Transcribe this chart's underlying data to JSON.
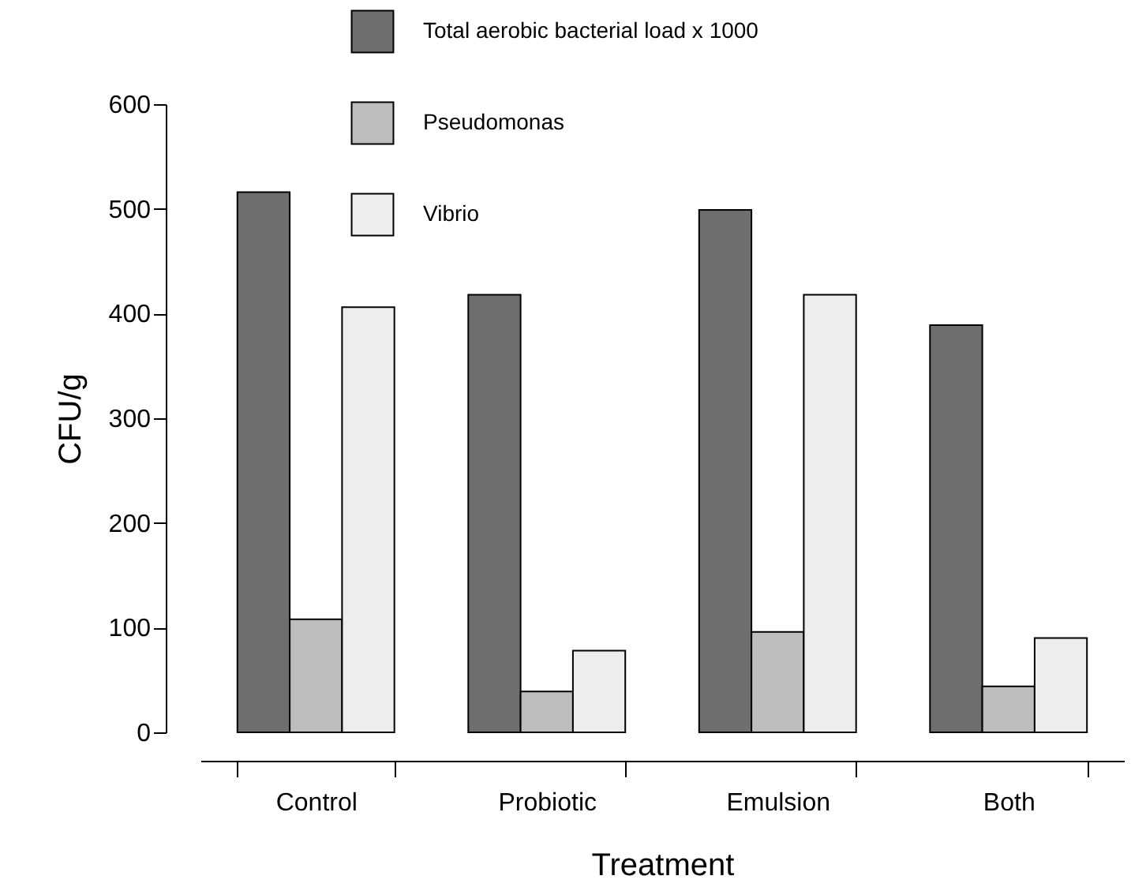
{
  "chart_data": {
    "type": "bar",
    "xlabel": "Treatment",
    "ylabel": "CFU/g",
    "categories": [
      "Control",
      "Probiotic",
      "Emulsion",
      "Both"
    ],
    "series": [
      {
        "name": "Total aerobic bacterial load x 1000",
        "color": "#6e6e6e",
        "values": [
          516,
          418,
          499,
          389
        ]
      },
      {
        "name": "Pseudomonas",
        "color": "#bdbdbd",
        "values": [
          108,
          39,
          96,
          44
        ]
      },
      {
        "name": "Vibrio",
        "color": "#ededed",
        "values": [
          406,
          78,
          418,
          90
        ]
      }
    ],
    "ylim": [
      0,
      600
    ],
    "yticks": [
      0,
      100,
      200,
      300,
      400,
      500,
      600
    ],
    "grid": false,
    "legend": "top"
  }
}
